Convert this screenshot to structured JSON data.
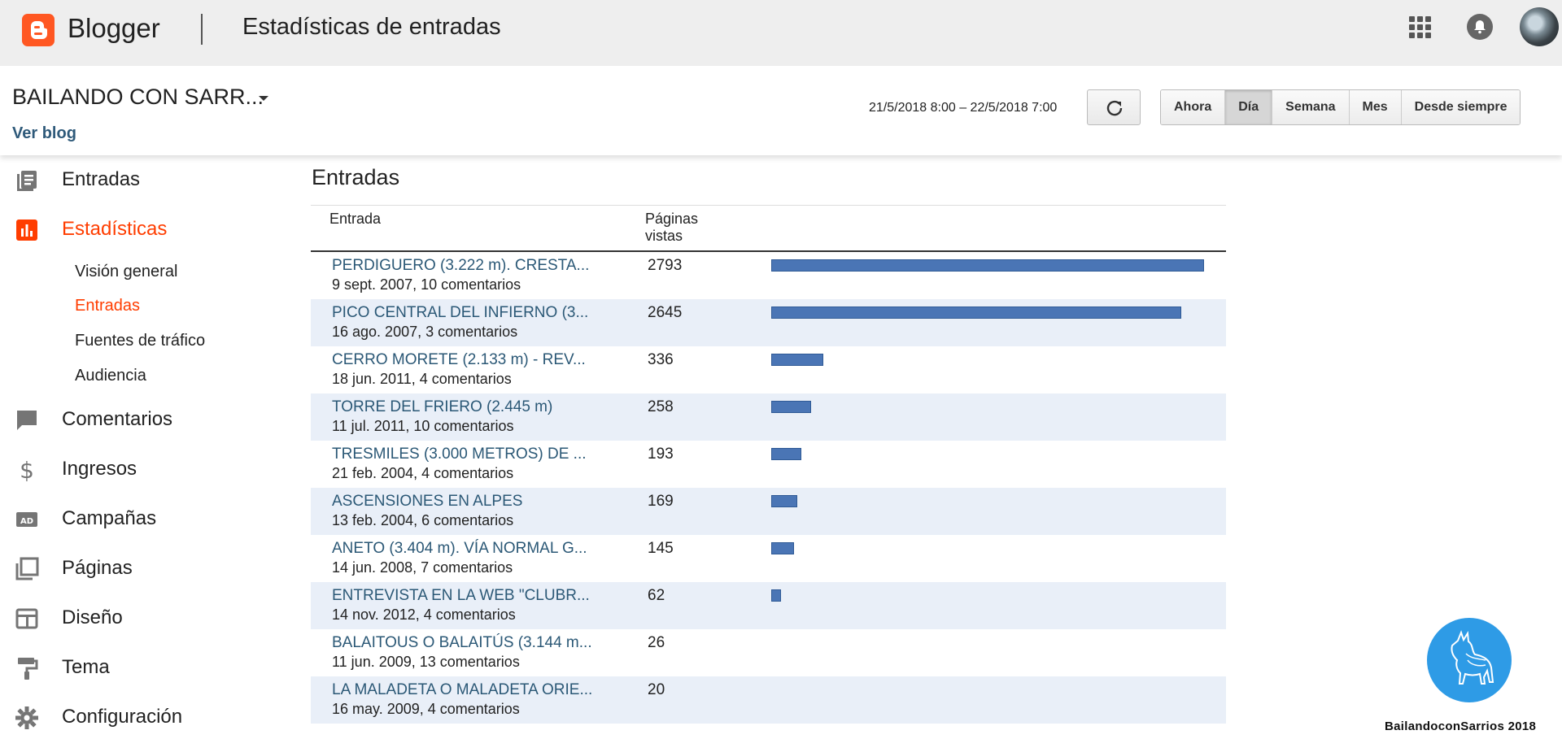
{
  "app": {
    "name": "Blogger",
    "page_title": "Estadísticas de entradas"
  },
  "header": {
    "blog_name": "BAILANDO CON SARR...",
    "view_blog": "Ver blog",
    "date_range": "21/5/2018 8:00 – 22/5/2018 7:00",
    "ranges": [
      "Ahora",
      "Día",
      "Semana",
      "Mes",
      "Desde siempre"
    ],
    "active_range": "Día"
  },
  "sidebar": {
    "items": [
      {
        "label": "Entradas",
        "icon": "posts-icon"
      },
      {
        "label": "Estadísticas",
        "icon": "stats-icon",
        "active": true
      },
      {
        "label": "Comentarios",
        "icon": "comments-icon"
      },
      {
        "label": "Ingresos",
        "icon": "dollar-icon"
      },
      {
        "label": "Campañas",
        "icon": "ad-icon"
      },
      {
        "label": "Páginas",
        "icon": "pages-icon"
      },
      {
        "label": "Diseño",
        "icon": "layout-icon"
      },
      {
        "label": "Tema",
        "icon": "paint-roller-icon"
      },
      {
        "label": "Configuración",
        "icon": "gear-icon"
      }
    ],
    "sub_items": [
      {
        "label": "Visión general"
      },
      {
        "label": "Entradas",
        "active": true
      },
      {
        "label": "Fuentes de tráfico"
      },
      {
        "label": "Audiencia"
      }
    ]
  },
  "main": {
    "section_title": "Entradas",
    "columns": {
      "entry": "Entrada",
      "views": "Páginas vistas"
    },
    "rows": [
      {
        "title": "PERDIGUERO (3.222 m). CRESTA...",
        "meta": "9 sept. 2007, 10 comentarios",
        "views": 2793
      },
      {
        "title": "PICO CENTRAL DEL INFIERNO (3...",
        "meta": "16 ago. 2007, 3 comentarios",
        "views": 2645
      },
      {
        "title": "CERRO MORETE (2.133 m) - REV...",
        "meta": "18 jun. 2011, 4 comentarios",
        "views": 336
      },
      {
        "title": "TORRE DEL FRIERO (2.445 m)",
        "meta": "11 jul. 2011, 10 comentarios",
        "views": 258
      },
      {
        "title": "TRESMILES (3.000 METROS) DE ...",
        "meta": "21 feb. 2004, 4 comentarios",
        "views": 193
      },
      {
        "title": "ASCENSIONES EN ALPES",
        "meta": "13 feb. 2004, 6 comentarios",
        "views": 169
      },
      {
        "title": "ANETO (3.404 m). VÍA NORMAL G...",
        "meta": "14 jun. 2008, 7 comentarios",
        "views": 145
      },
      {
        "title": "ENTREVISTA EN LA WEB \"CLUBR...",
        "meta": "14 nov. 2012, 4 comentarios",
        "views": 62
      },
      {
        "title": "BALAITOUS O BALAITÚS (3.144 m...",
        "meta": "11 jun. 2009, 13 comentarios",
        "views": 26
      },
      {
        "title": "LA MALADETA O MALADETA ORIE...",
        "meta": "16 may. 2009, 4 comentarios",
        "views": 20
      }
    ]
  },
  "watermark": {
    "text": "BailandoconSarrios 2018"
  },
  "colors": {
    "accent": "#ff5722",
    "active_text": "#ff3d00",
    "bar": "#4a75b5",
    "row_alt": "#e9eff8",
    "link": "#2b5876"
  }
}
